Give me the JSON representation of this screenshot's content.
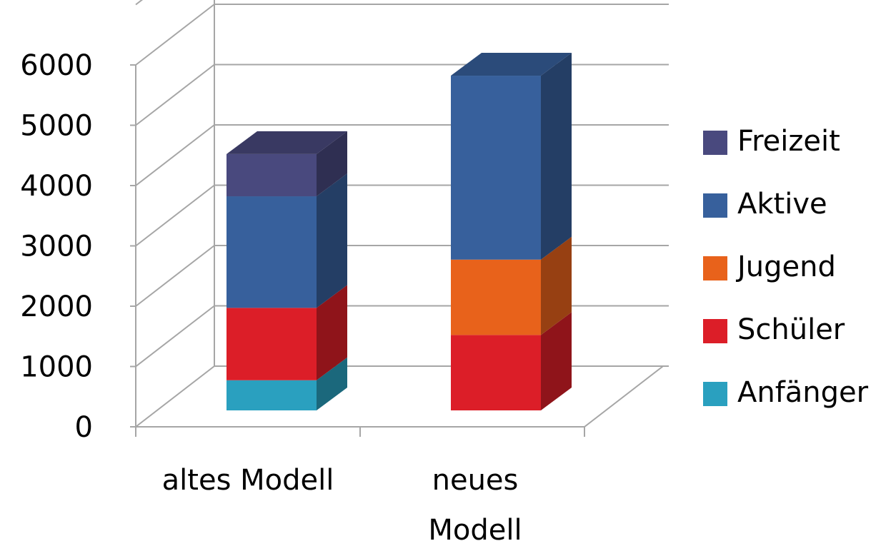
{
  "chart_data": {
    "type": "bar",
    "stacked": true,
    "three_d": true,
    "categories": [
      [
        "altes Modell"
      ],
      [
        "neues",
        "Modell"
      ]
    ],
    "y_ticks": [
      "0",
      "1000",
      "2000",
      "3000",
      "4000",
      "5000",
      "6000"
    ],
    "ylim": [
      0,
      6000
    ],
    "grid": true,
    "legend_position": "right",
    "series": [
      {
        "name": "Anfänger",
        "color": "#2aa0bf",
        "values": [
          500,
          0
        ]
      },
      {
        "name": "Schüler",
        "color": "#dc1e28",
        "values": [
          1200,
          1250
        ]
      },
      {
        "name": "Jugend",
        "color": "#e8621b",
        "values": [
          0,
          1250
        ]
      },
      {
        "name": "Aktive",
        "color": "#37609c",
        "values": [
          1850,
          3050
        ]
      },
      {
        "name": "Freizeit",
        "color": "#49497e",
        "values": [
          700,
          0
        ]
      }
    ],
    "legend_order": [
      "Freizeit",
      "Aktive",
      "Jugend",
      "Schüler",
      "Anfänger"
    ]
  }
}
